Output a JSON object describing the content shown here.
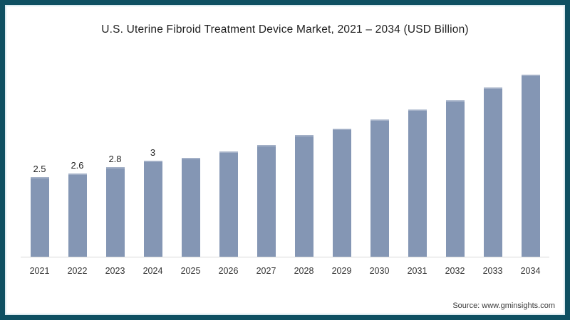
{
  "chart_data": {
    "type": "bar",
    "title": "U.S. Uterine Fibroid Treatment Device Market, 2021 – 2034 (USD Billion)",
    "categories": [
      "2021",
      "2022",
      "2023",
      "2024",
      "2025",
      "2026",
      "2027",
      "2028",
      "2029",
      "2030",
      "2031",
      "2032",
      "2033",
      "2034"
    ],
    "values": [
      2.5,
      2.6,
      2.8,
      3.0,
      3.1,
      3.3,
      3.5,
      3.8,
      4.0,
      4.3,
      4.6,
      4.9,
      5.3,
      5.7
    ],
    "data_labels": [
      "2.5",
      "2.6",
      "2.8",
      "3",
      "",
      "",
      "",
      "",
      "",
      "",
      "",
      "",
      "",
      ""
    ],
    "xlabel": "",
    "ylabel": "",
    "ylim": [
      0,
      6
    ],
    "grid": false,
    "legend": "none",
    "bar_color": "#8496b4",
    "axis_line_color": "#d9d9d9"
  },
  "frame": {
    "border_color": "#0f5062",
    "inner_line_color": "#dcebf0",
    "background": "#ffffff"
  },
  "source": {
    "text": "Source: www.gminsights.com"
  }
}
